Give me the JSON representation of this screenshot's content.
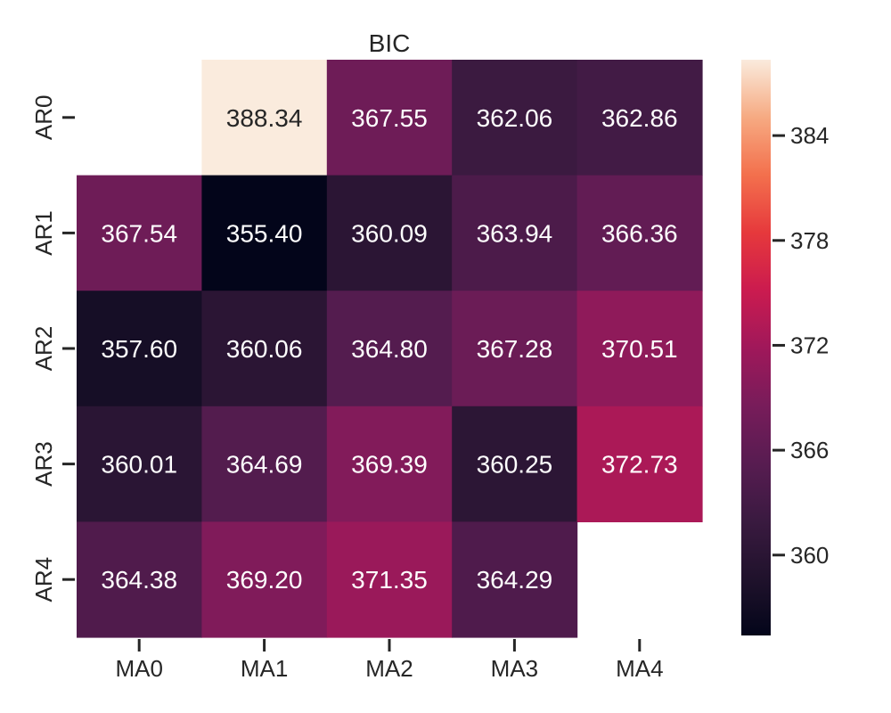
{
  "chart_data": {
    "type": "heatmap",
    "title": "BIC",
    "xlabel": "",
    "ylabel": "",
    "x_categories": [
      "MA0",
      "MA1",
      "MA2",
      "MA3",
      "MA4"
    ],
    "y_categories": [
      "AR0",
      "AR1",
      "AR2",
      "AR3",
      "AR4"
    ],
    "values": [
      [
        null,
        388.34,
        367.55,
        362.06,
        362.86
      ],
      [
        367.54,
        355.4,
        360.09,
        363.94,
        366.36
      ],
      [
        357.6,
        360.06,
        364.8,
        367.28,
        370.51
      ],
      [
        360.01,
        364.69,
        369.39,
        360.25,
        372.73
      ],
      [
        364.38,
        369.2,
        371.35,
        364.29,
        null
      ]
    ],
    "value_format": "2f",
    "colorbar": {
      "ticks": [
        360,
        366,
        372,
        378,
        384
      ],
      "vmin": 355.4,
      "vmax": 388.34,
      "colormap": "rocket"
    }
  }
}
